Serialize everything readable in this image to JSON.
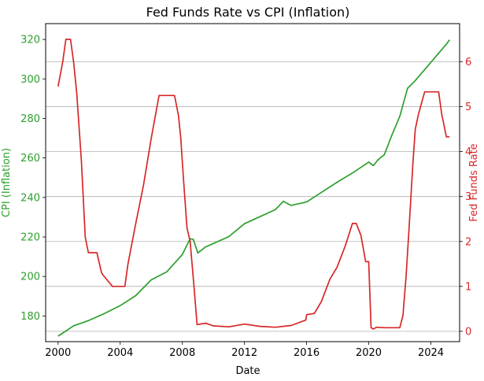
{
  "chart_data": {
    "type": "line",
    "title": "Fed Funds Rate vs CPI (Inflation)",
    "xlabel": "Date",
    "xlim": [
      1999.2,
      2025.85
    ],
    "x_ticks": [
      2000,
      2004,
      2008,
      2012,
      2016,
      2020,
      2024
    ],
    "grid": "horizontal lines at right-axis ticks",
    "left_axis": {
      "label": "CPI (Inflation)",
      "ylim": [
        167,
        328
      ],
      "ticks": [
        180,
        200,
        220,
        240,
        260,
        280,
        300,
        320
      ],
      "color": "#2ca02c"
    },
    "right_axis": {
      "label": "Fed Funds Rate",
      "ylim": [
        -0.23,
        6.85
      ],
      "ticks": [
        0,
        1,
        2,
        3,
        4,
        5,
        6
      ],
      "color": "#d62728"
    },
    "series": [
      {
        "name": "CPI (Inflation)",
        "axis": "left",
        "color": "#2ca02c",
        "x": [
          2000.0,
          2001.0,
          2002.0,
          2003.0,
          2004.0,
          2005.0,
          2006.0,
          2007.0,
          2008.0,
          2008.5,
          2008.7,
          2009.0,
          2009.5,
          2010.0,
          2011.0,
          2012.0,
          2013.0,
          2014.0,
          2014.5,
          2015.0,
          2016.0,
          2017.0,
          2018.0,
          2019.0,
          2020.0,
          2020.3,
          2020.6,
          2021.0,
          2021.5,
          2022.0,
          2022.5,
          2023.0,
          2024.0,
          2024.5,
          2025.0,
          2025.2
        ],
        "y": [
          169.8,
          175.0,
          177.8,
          181.3,
          185.2,
          190.3,
          198.3,
          202.4,
          211.1,
          219.1,
          218.8,
          211.9,
          215.0,
          216.7,
          220.2,
          226.7,
          230.3,
          233.9,
          238.0,
          236.0,
          237.7,
          242.8,
          247.9,
          252.6,
          257.9,
          256.1,
          259.1,
          261.6,
          271.7,
          281.1,
          295.3,
          299.2,
          308.4,
          313.0,
          317.6,
          319.8
        ]
      },
      {
        "name": "Fed Funds Rate",
        "axis": "right",
        "color": "#d62728",
        "x": [
          2000.0,
          2000.3,
          2000.5,
          2000.8,
          2001.0,
          2001.2,
          2001.5,
          2001.75,
          2001.95,
          2002.5,
          2002.8,
          2002.9,
          2003.5,
          2003.55,
          2004.3,
          2004.5,
          2005.0,
          2005.5,
          2006.0,
          2006.5,
          2007.5,
          2007.75,
          2007.9,
          2008.05,
          2008.3,
          2008.5,
          2008.75,
          2008.95,
          2009.5,
          2010.0,
          2011.0,
          2012.0,
          2013.0,
          2014.0,
          2015.0,
          2015.95,
          2016.0,
          2016.5,
          2016.95,
          2017.5,
          2017.95,
          2018.5,
          2018.95,
          2019.2,
          2019.5,
          2019.8,
          2020.0,
          2020.15,
          2020.3,
          2020.5,
          2021.0,
          2022.0,
          2022.2,
          2022.4,
          2022.6,
          2022.85,
          2023.0,
          2023.2,
          2023.4,
          2023.6,
          2024.5,
          2024.7,
          2024.85,
          2025.0,
          2025.2
        ],
        "y": [
          5.45,
          6.0,
          6.5,
          6.5,
          6.0,
          5.3,
          3.8,
          2.1,
          1.75,
          1.75,
          1.3,
          1.25,
          1.0,
          1.0,
          1.0,
          1.5,
          2.4,
          3.25,
          4.3,
          5.25,
          5.25,
          4.8,
          4.3,
          3.5,
          2.3,
          2.0,
          1.0,
          0.15,
          0.18,
          0.12,
          0.1,
          0.16,
          0.11,
          0.09,
          0.13,
          0.25,
          0.37,
          0.4,
          0.66,
          1.16,
          1.42,
          1.91,
          2.4,
          2.4,
          2.13,
          1.55,
          1.55,
          0.08,
          0.05,
          0.09,
          0.08,
          0.08,
          0.35,
          1.2,
          2.33,
          3.78,
          4.5,
          4.83,
          5.08,
          5.33,
          5.33,
          4.83,
          4.58,
          4.33,
          4.33
        ]
      }
    ]
  }
}
